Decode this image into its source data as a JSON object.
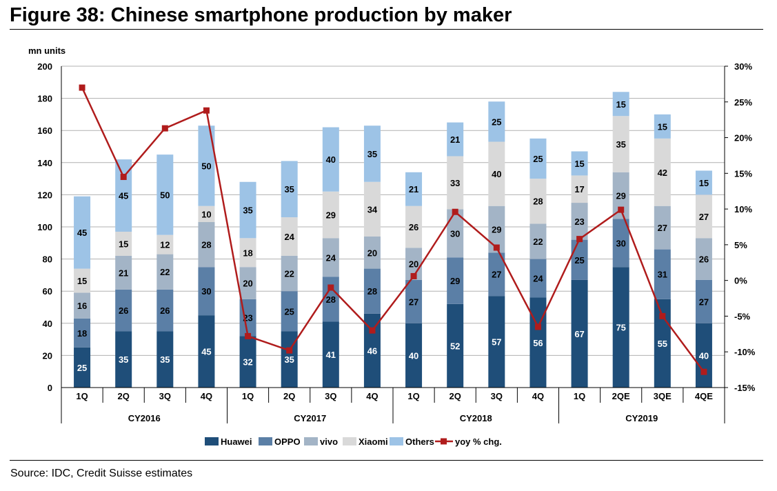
{
  "title": "Figure 38: Chinese smartphone production by maker",
  "source": "Source: IDC, Credit Suisse estimates",
  "chart_data": {
    "type": "bar",
    "stacked": true,
    "y_unit_label": "mn units",
    "ylim": [
      0,
      200
    ],
    "y_ticks": [
      0,
      20,
      40,
      60,
      80,
      100,
      120,
      140,
      160,
      180,
      200
    ],
    "y2lim": [
      -15,
      30
    ],
    "y2_ticks": [
      "30%",
      "25%",
      "20%",
      "15%",
      "10%",
      "5%",
      "0%",
      "-5%",
      "-10%",
      "-15%"
    ],
    "y2_tick_values": [
      30,
      25,
      20,
      15,
      10,
      5,
      0,
      -5,
      -10,
      -15
    ],
    "categories": [
      "1Q",
      "2Q",
      "3Q",
      "4Q",
      "1Q",
      "2Q",
      "3Q",
      "4Q",
      "1Q",
      "2Q",
      "3Q",
      "4Q",
      "1Q",
      "2QE",
      "3QE",
      "4QE"
    ],
    "groups": [
      {
        "label": "CY2016",
        "count": 4
      },
      {
        "label": "CY2017",
        "count": 4
      },
      {
        "label": "CY2018",
        "count": 4
      },
      {
        "label": "CY2019",
        "count": 4
      }
    ],
    "series": [
      {
        "name": "Huawei",
        "color": "#1f4e79",
        "label_color": "#ffffff",
        "values": [
          25,
          35,
          35,
          45,
          32,
          35,
          41,
          46,
          40,
          52,
          57,
          56,
          67,
          75,
          55,
          40
        ]
      },
      {
        "name": "OPPO",
        "color": "#5b7fa6",
        "label_color": "#000000",
        "values": [
          18,
          26,
          26,
          30,
          23,
          25,
          28,
          28,
          27,
          29,
          27,
          24,
          25,
          30,
          31,
          27
        ]
      },
      {
        "name": "vivo",
        "color": "#a3b4c6",
        "label_color": "#000000",
        "values": [
          16,
          21,
          22,
          28,
          20,
          22,
          24,
          20,
          20,
          30,
          29,
          22,
          23,
          29,
          27,
          26
        ]
      },
      {
        "name": "Xiaomi",
        "color": "#d9d9d9",
        "label_color": "#000000",
        "values": [
          15,
          15,
          12,
          10,
          18,
          24,
          29,
          34,
          26,
          33,
          40,
          28,
          17,
          35,
          42,
          27
        ]
      },
      {
        "name": "Others",
        "color": "#9dc3e6",
        "label_color": "#000000",
        "values": [
          45,
          45,
          50,
          50,
          35,
          35,
          40,
          35,
          21,
          21,
          25,
          25,
          15,
          15,
          15,
          15
        ]
      }
    ],
    "line_series": {
      "name": "yoy % chg.",
      "color": "#b01c1c",
      "axis": "right",
      "values": [
        27,
        14.5,
        21.3,
        23.8,
        -7.8,
        -9.8,
        -1,
        -7,
        0.6,
        9.6,
        4.6,
        -6.5,
        5.8,
        9.9,
        -5,
        -12.8
      ]
    },
    "grid": true,
    "legend_position": "bottom"
  }
}
